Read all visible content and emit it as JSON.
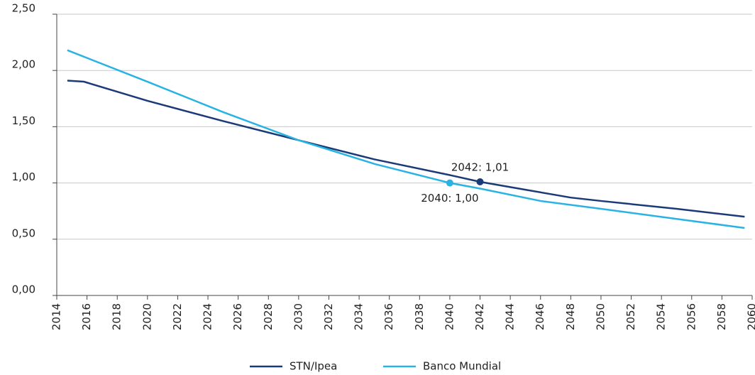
{
  "chart_data": {
    "type": "line",
    "series": [
      {
        "name": "STN/Ipea",
        "color": "#1b3a78",
        "x": [
          2014.7,
          2015.8,
          2020,
          2025,
          2030,
          2035,
          2040,
          2042,
          2045,
          2048,
          2050,
          2055,
          2059.5
        ],
        "values": [
          1.91,
          1.9,
          1.73,
          1.55,
          1.38,
          1.21,
          1.07,
          1.01,
          0.94,
          0.87,
          0.84,
          0.77,
          0.7
        ]
      },
      {
        "name": "Banco Mundial",
        "color": "#29b3e4",
        "x": [
          2014.7,
          2020,
          2025,
          2030,
          2035,
          2040,
          2042,
          2046,
          2050,
          2055,
          2059.5
        ],
        "values": [
          2.18,
          1.9,
          1.63,
          1.38,
          1.17,
          1.0,
          0.95,
          0.84,
          0.77,
          0.68,
          0.6
        ]
      }
    ],
    "annotations": [
      {
        "text": "2042: 1,01",
        "x": 2042,
        "y": 1.01,
        "series": 0
      },
      {
        "text": "2040: 1,00",
        "x": 2040,
        "y": 1.0,
        "series": 1
      }
    ],
    "xlim": [
      2014,
      2060
    ],
    "xticks": [
      2014,
      2016,
      2018,
      2020,
      2022,
      2024,
      2026,
      2028,
      2030,
      2032,
      2034,
      2036,
      2038,
      2040,
      2042,
      2044,
      2046,
      2048,
      2050,
      2052,
      2054,
      2056,
      2058,
      2060
    ],
    "ylim": [
      0,
      2.5
    ],
    "yticks": [
      {
        "value": 0,
        "label": "0,00"
      },
      {
        "value": 0.5,
        "label": "0,50"
      },
      {
        "value": 1,
        "label": "1,00"
      },
      {
        "value": 1.5,
        "label": "1,50"
      },
      {
        "value": 2,
        "label": "2,00"
      },
      {
        "value": 2.5,
        "label": "2,50"
      }
    ],
    "grid": true
  }
}
